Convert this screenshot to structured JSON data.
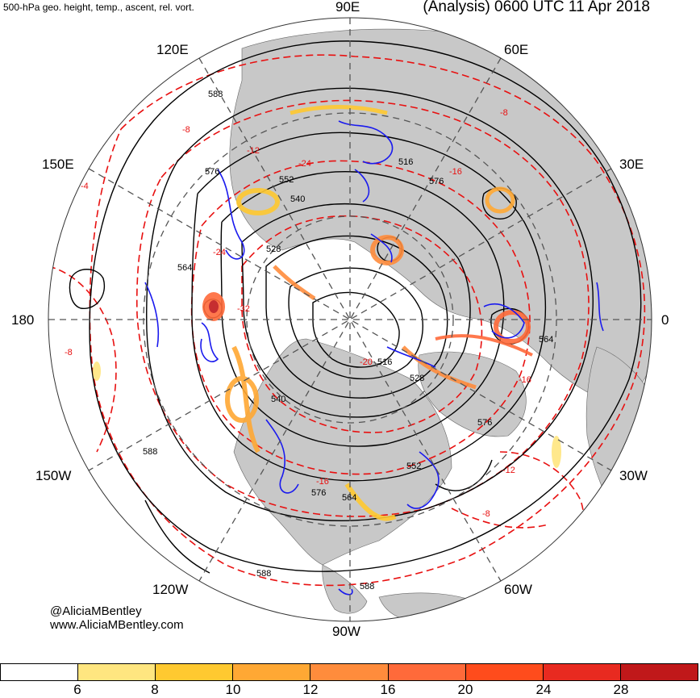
{
  "header": {
    "left": "500-hPa geo. height, temp., ascent, rel. vort.",
    "right": "(Analysis) 0600 UTC 11 Apr 2018"
  },
  "longitude_labels": {
    "n90e": "90E",
    "n60e": "60E",
    "n30e": "30E",
    "n0": "0",
    "n30w": "30W",
    "n60w": "60W",
    "n90w": "90W",
    "n120w": "120W",
    "n150w": "150W",
    "n180": "180",
    "n150e": "150E",
    "n120e": "120E"
  },
  "height_labels": [
    "588",
    "576",
    "552",
    "540",
    "528",
    "564",
    "516",
    "576",
    "552",
    "576",
    "564",
    "588",
    "588",
    "588",
    "528",
    "540",
    "516",
    "564",
    "576"
  ],
  "temp_labels": [
    "-8",
    "-12",
    "-16",
    "-24",
    "-32",
    "-16",
    "-12",
    "-8",
    "-4",
    "-8",
    "-8",
    "-20",
    "-24",
    "-16"
  ],
  "credits": {
    "handle": "@AliciaMBentley",
    "site": "www.AliciaMBentley.com"
  },
  "colorbar": {
    "colors": [
      "#ffffff",
      "#ffe680",
      "#ffc930",
      "#ffa834",
      "#ff8c3c",
      "#ff6a3a",
      "#ff4c1c",
      "#e82a20",
      "#c0181a"
    ],
    "ticks": [
      "6",
      "8",
      "10",
      "12",
      "16",
      "20",
      "24",
      "28"
    ]
  },
  "palette": {
    "land": "#c8c8c8",
    "height_contour": "#000000",
    "temp_contour": "#e81010",
    "ascent_contour": "#1a1aee",
    "grid": "#555555"
  }
}
